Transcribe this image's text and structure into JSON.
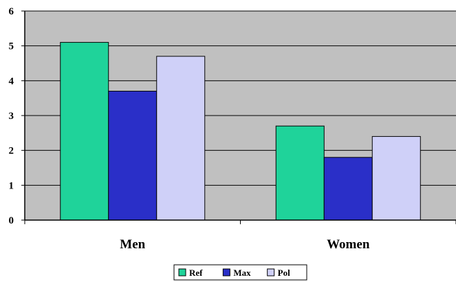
{
  "chart_data": {
    "type": "bar",
    "categories": [
      "Men",
      "Women"
    ],
    "series": [
      {
        "name": "Ref",
        "values": [
          5.1,
          2.7
        ],
        "color": "#1fd39a"
      },
      {
        "name": "Max",
        "values": [
          3.7,
          1.8
        ],
        "color": "#2a2fc8"
      },
      {
        "name": "Pol",
        "values": [
          4.7,
          2.4
        ],
        "color": "#cfd0f8"
      }
    ],
    "ylim": [
      0,
      6
    ],
    "yticks": [
      0,
      1,
      2,
      3,
      4,
      5,
      6
    ],
    "grid": true,
    "plot_background": "#c0c0c0",
    "legend_position": "bottom"
  }
}
